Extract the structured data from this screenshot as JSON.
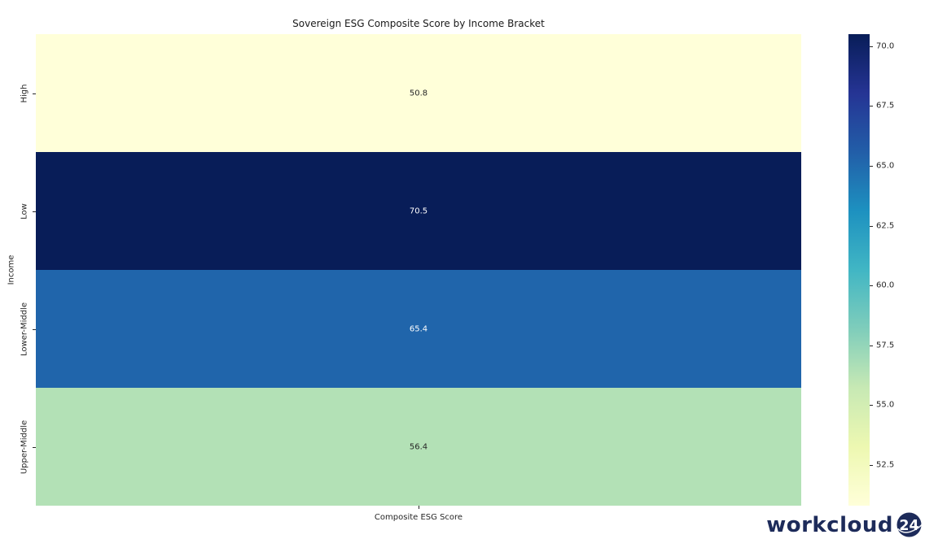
{
  "chart_data": {
    "type": "heatmap",
    "title": "Sovereign ESG Composite Score by Income Bracket",
    "xlabel": "Composite ESG Score",
    "ylabel": "Income",
    "columns": [
      "Composite ESG Score"
    ],
    "categories": [
      "High",
      "Low",
      "Lower-Middle",
      "Upper-Middle"
    ],
    "values": [
      50.8,
      70.5,
      65.4,
      56.4
    ],
    "rows": [
      {
        "label": "High",
        "value": 50.8,
        "color": "#ffffd9",
        "text_color": "#262626"
      },
      {
        "label": "Low",
        "value": 70.5,
        "color": "#081d58",
        "text_color": "#ffffff"
      },
      {
        "label": "Lower-Middle",
        "value": 65.4,
        "color": "#2065ab",
        "text_color": "#ffffff"
      },
      {
        "label": "Upper-Middle",
        "value": 56.4,
        "color": "#b3e1b6",
        "text_color": "#262626"
      }
    ],
    "colorbar": {
      "min": 50.8,
      "max": 70.5,
      "ticks": [
        70.0,
        67.5,
        65.0,
        62.5,
        60.0,
        57.5,
        55.0,
        52.5
      ],
      "colormap": "YlGnBu",
      "gradient_stops_low_to_high": [
        "#ffffd9",
        "#edf8b1",
        "#c7e9b4",
        "#7fcdbb",
        "#41b6c4",
        "#1d91c0",
        "#225ea8",
        "#253494",
        "#081d58"
      ],
      "legend_position": "right"
    },
    "grid": false
  },
  "branding": {
    "logo_text": "workcloud",
    "logo_badge": "24",
    "logo_color": "#1d2b5a"
  }
}
